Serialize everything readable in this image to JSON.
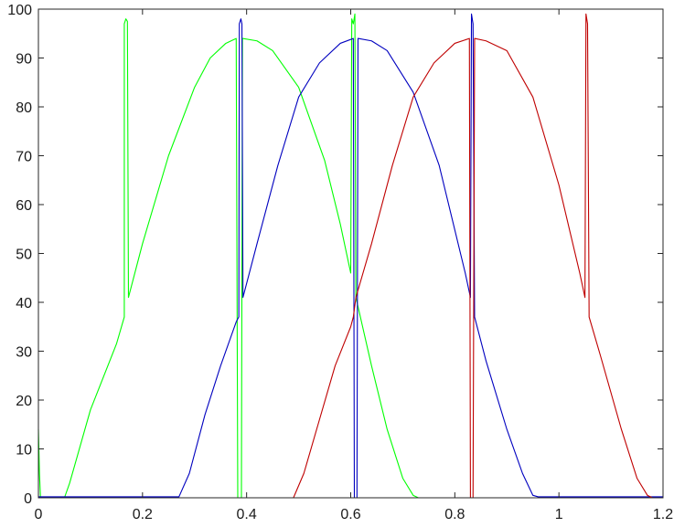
{
  "chart_data": {
    "type": "line",
    "title": "",
    "xlabel": "",
    "ylabel": "",
    "xlim": [
      0,
      1.2
    ],
    "ylim": [
      0,
      100
    ],
    "xticks": [
      0,
      0.2,
      0.4,
      0.6,
      0.8,
      1,
      1.2
    ],
    "xtick_labels": [
      "0",
      "0.2",
      "0.4",
      "0.6",
      "0.8",
      "1",
      "1.2"
    ],
    "yticks": [
      0,
      10,
      20,
      30,
      40,
      50,
      60,
      70,
      80,
      90,
      100
    ],
    "ytick_labels": [
      "0",
      "10",
      "20",
      "30",
      "40",
      "50",
      "60",
      "70",
      "80",
      "90",
      "100"
    ],
    "grid": false,
    "legend": "none",
    "series": [
      {
        "color": "#00ff00",
        "points": [
          [
            0.0,
            14
          ],
          [
            0.002,
            5
          ],
          [
            0.004,
            0
          ],
          [
            0.05,
            0
          ],
          [
            0.06,
            3
          ],
          [
            0.1,
            18
          ],
          [
            0.15,
            31.5
          ],
          [
            0.165,
            37
          ],
          [
            0.165,
            97
          ],
          [
            0.168,
            98
          ],
          [
            0.171,
            97.5
          ],
          [
            0.173,
            41
          ],
          [
            0.2,
            52
          ],
          [
            0.25,
            70
          ],
          [
            0.3,
            84
          ],
          [
            0.33,
            90
          ],
          [
            0.36,
            93
          ],
          [
            0.38,
            94
          ],
          [
            0.383,
            0
          ],
          [
            0.39,
            0
          ],
          [
            0.392,
            94
          ],
          [
            0.42,
            93.5
          ],
          [
            0.45,
            91.5
          ],
          [
            0.5,
            84
          ],
          [
            0.55,
            69
          ],
          [
            0.58,
            56
          ],
          [
            0.6,
            46
          ],
          [
            0.602,
            98
          ],
          [
            0.605,
            97
          ],
          [
            0.608,
            99
          ],
          [
            0.61,
            41
          ],
          [
            0.64,
            27
          ],
          [
            0.67,
            14
          ],
          [
            0.7,
            4
          ],
          [
            0.72,
            0.5
          ],
          [
            0.73,
            0
          ],
          [
            1.2,
            0
          ]
        ]
      },
      {
        "color": "#0000bf",
        "points": [
          [
            0.0,
            0.2
          ],
          [
            0.27,
            0.2
          ],
          [
            0.29,
            5
          ],
          [
            0.32,
            17
          ],
          [
            0.35,
            27
          ],
          [
            0.38,
            36
          ],
          [
            0.385,
            37
          ],
          [
            0.386,
            97
          ],
          [
            0.389,
            98
          ],
          [
            0.391,
            97
          ],
          [
            0.393,
            41
          ],
          [
            0.42,
            52
          ],
          [
            0.46,
            68
          ],
          [
            0.5,
            82
          ],
          [
            0.54,
            89
          ],
          [
            0.58,
            93
          ],
          [
            0.605,
            94
          ],
          [
            0.607,
            0
          ],
          [
            0.612,
            0
          ],
          [
            0.614,
            94
          ],
          [
            0.64,
            93.5
          ],
          [
            0.67,
            91.5
          ],
          [
            0.72,
            83
          ],
          [
            0.77,
            68
          ],
          [
            0.82,
            46
          ],
          [
            0.83,
            41
          ],
          [
            0.832,
            99
          ],
          [
            0.835,
            97
          ],
          [
            0.838,
            37
          ],
          [
            0.86,
            28
          ],
          [
            0.9,
            14
          ],
          [
            0.93,
            5
          ],
          [
            0.95,
            0.5
          ],
          [
            0.96,
            0.2
          ],
          [
            1.2,
            0.2
          ]
        ]
      },
      {
        "color": "#bf0000",
        "points": [
          [
            0.0,
            0
          ],
          [
            0.49,
            0
          ],
          [
            0.51,
            5
          ],
          [
            0.54,
            16
          ],
          [
            0.57,
            27
          ],
          [
            0.6,
            35
          ],
          [
            0.605,
            37
          ],
          [
            0.61,
            41
          ],
          [
            0.64,
            52
          ],
          [
            0.68,
            68
          ],
          [
            0.72,
            82
          ],
          [
            0.76,
            89
          ],
          [
            0.8,
            93
          ],
          [
            0.828,
            94
          ],
          [
            0.83,
            0
          ],
          [
            0.835,
            0
          ],
          [
            0.838,
            94
          ],
          [
            0.86,
            93.5
          ],
          [
            0.9,
            91.5
          ],
          [
            0.95,
            82
          ],
          [
            1.0,
            64
          ],
          [
            1.04,
            46
          ],
          [
            1.05,
            41
          ],
          [
            1.052,
            99
          ],
          [
            1.055,
            97
          ],
          [
            1.058,
            37
          ],
          [
            1.08,
            29
          ],
          [
            1.12,
            14
          ],
          [
            1.15,
            4
          ],
          [
            1.17,
            0.5
          ],
          [
            1.18,
            0
          ],
          [
            1.2,
            0
          ]
        ]
      }
    ]
  }
}
